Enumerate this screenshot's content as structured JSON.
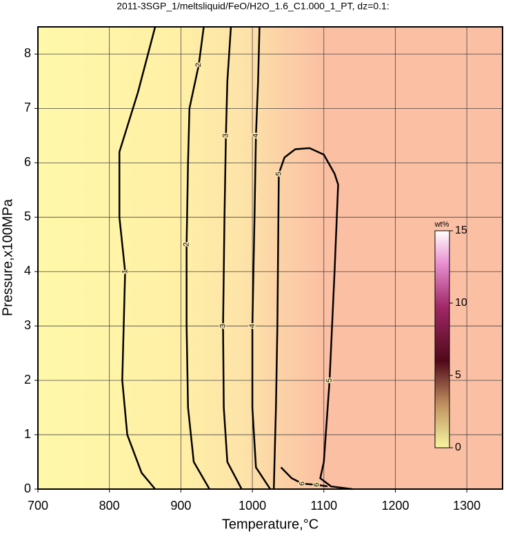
{
  "chart_data": {
    "type": "contour",
    "title": "2011-3SGP_1/meltsliquid/FeO/H2O_1.6_C1.000_1_PT, dz=0.1:",
    "x_label": "Temperature,°C",
    "y_label": "Pressure,x100MPa",
    "xlim": [
      700,
      1350
    ],
    "ylim": [
      0,
      8.5
    ],
    "xticks": [
      700,
      800,
      900,
      1000,
      1100,
      1200,
      1300
    ],
    "yticks": [
      0,
      1,
      2,
      3,
      4,
      5,
      6,
      7,
      8
    ],
    "grid": true,
    "contours": [
      {
        "level": 1,
        "x": [
          864,
          845,
          825,
          818,
          820,
          822,
          814,
          814,
          840,
          864
        ],
        "y": [
          0,
          0.3,
          1,
          2,
          3,
          4,
          5,
          6.2,
          7.3,
          8.5
        ]
      },
      {
        "level": 2,
        "x": [
          940,
          918,
          910,
          908,
          908,
          910,
          912,
          925,
          932
        ],
        "y": [
          0,
          0.5,
          1.5,
          3,
          4.5,
          6,
          7,
          7.8,
          8.5
        ]
      },
      {
        "level": 3,
        "x": [
          985,
          965,
          960,
          959,
          961,
          963,
          965,
          970
        ],
        "y": [
          0,
          0.5,
          1.5,
          3,
          5,
          6.5,
          7.5,
          8.5
        ]
      },
      {
        "level": 4,
        "x": [
          1025,
          1005,
          1000,
          1000,
          1003,
          1005,
          1008,
          1010
        ],
        "y": [
          0,
          0.4,
          1.5,
          3,
          5,
          6.5,
          7.5,
          8.5
        ]
      },
      {
        "level": 5,
        "x": [
          1030,
          1033,
          1035,
          1037,
          1045,
          1060,
          1080,
          1100,
          1115,
          1120,
          1115,
          1108,
          1100,
          1095,
          1110,
          1140
        ],
        "y": [
          0,
          1.5,
          3,
          5.8,
          6.1,
          6.25,
          6.27,
          6.15,
          5.8,
          5.6,
          4,
          2,
          0.5,
          0.2,
          0.05,
          0
        ]
      },
      {
        "level": 6,
        "x": [
          1040,
          1055,
          1070,
          1090,
          1105
        ],
        "y": [
          0.4,
          0.2,
          0.1,
          0.08,
          0.05
        ]
      }
    ],
    "colorbar": {
      "label": "wt%",
      "lim": [
        0,
        15
      ],
      "ticks": [
        0,
        5,
        10,
        15
      ]
    }
  }
}
